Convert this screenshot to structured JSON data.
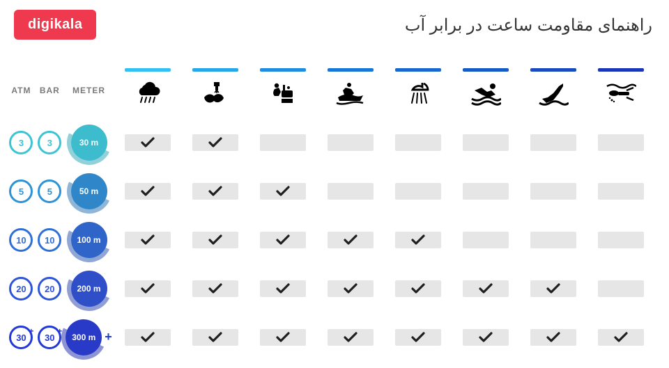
{
  "logo_text": "digikala",
  "title_text": "راهنمای مقاومت ساعت در برابر آب",
  "colors": {
    "logo_bg": "#ef394e",
    "cell_bg": "#e6e6e6",
    "check": "#1f1f1f",
    "icon": "#000000"
  },
  "headers": {
    "atm": "ATM",
    "bar": "BAR",
    "meter": "METER"
  },
  "activities": [
    {
      "key": "rain",
      "bar_color": "#33c0f3"
    },
    {
      "key": "wash",
      "bar_color": "#28a7e8"
    },
    {
      "key": "bath",
      "bar_color": "#1e8de0"
    },
    {
      "key": "jetski",
      "bar_color": "#1877d6"
    },
    {
      "key": "shower",
      "bar_color": "#1867cf"
    },
    {
      "key": "swim",
      "bar_color": "#165ac6"
    },
    {
      "key": "dive",
      "bar_color": "#1a4ac0"
    },
    {
      "key": "scuba",
      "bar_color": "#1a35b5"
    }
  ],
  "rows": [
    {
      "atm": "3",
      "bar": "3",
      "meter": "30 m",
      "ring_color": "#3cc4d4",
      "orb_color": "#3cbccd",
      "arc_color": "#2aa5b7",
      "plus": false,
      "checks": [
        true,
        true,
        false,
        false,
        false,
        false,
        false,
        false
      ]
    },
    {
      "atm": "5",
      "bar": "5",
      "meter": "50 m",
      "ring_color": "#2e92d6",
      "orb_color": "#2f87c9",
      "arc_color": "#2370b0",
      "plus": false,
      "checks": [
        true,
        true,
        true,
        false,
        false,
        false,
        false,
        false
      ]
    },
    {
      "atm": "10",
      "bar": "10",
      "meter": "100 m",
      "ring_color": "#2f6fd8",
      "orb_color": "#2f65c8",
      "arc_color": "#2452ad",
      "plus": false,
      "checks": [
        true,
        true,
        true,
        true,
        true,
        false,
        false,
        false
      ]
    },
    {
      "atm": "20",
      "bar": "20",
      "meter": "200 m",
      "ring_color": "#2d55d8",
      "orb_color": "#2f4fc8",
      "arc_color": "#2340aa",
      "plus": false,
      "checks": [
        true,
        true,
        true,
        true,
        true,
        true,
        true,
        false
      ]
    },
    {
      "atm": "30",
      "bar": "30",
      "meter": "300 m",
      "ring_color": "#2238d8",
      "orb_color": "#2a3ac8",
      "arc_color": "#1c2ca8",
      "plus": true,
      "checks": [
        true,
        true,
        true,
        true,
        true,
        true,
        true,
        true
      ]
    }
  ]
}
